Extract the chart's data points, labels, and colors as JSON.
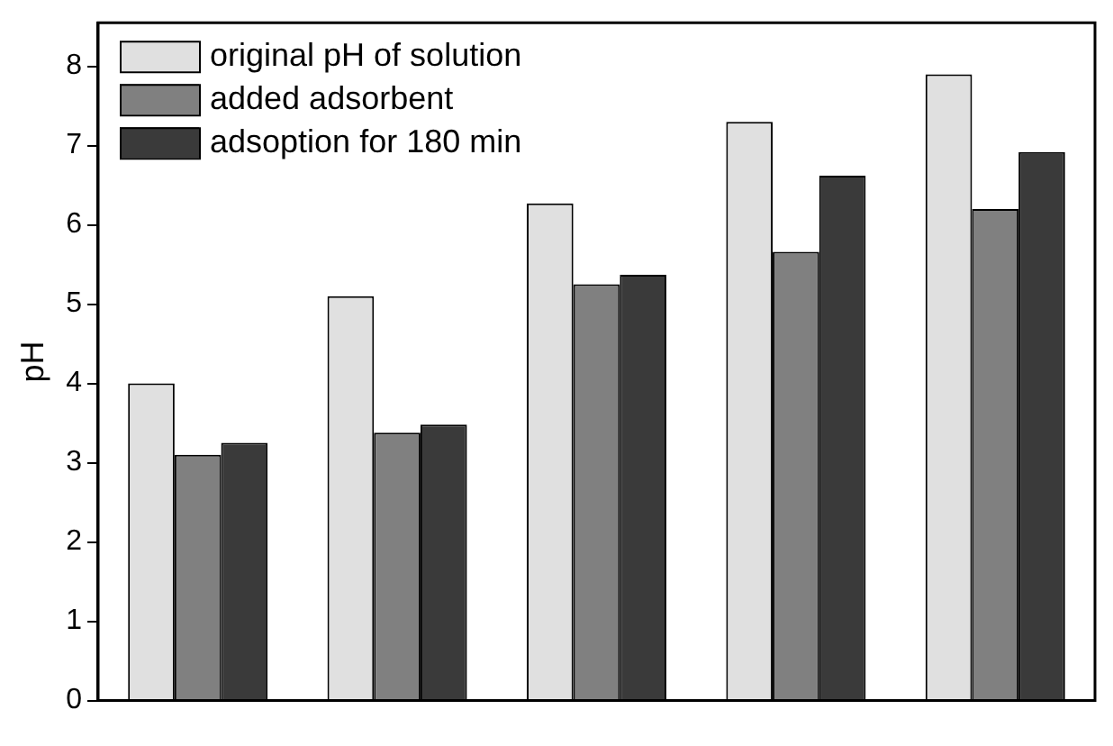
{
  "chart_data": {
    "type": "bar",
    "ylabel": "pH",
    "categories": [
      null,
      null,
      null,
      null,
      null
    ],
    "series": [
      {
        "name": "original pH of solution",
        "color": "#e0e0e0",
        "values": [
          4.0,
          5.1,
          6.27,
          7.3,
          7.9
        ]
      },
      {
        "name": "added adsorbent",
        "color": "#808080",
        "values": [
          3.1,
          3.38,
          5.25,
          5.66,
          6.2
        ]
      },
      {
        "name": "adsoption for 180 min",
        "color": "#3a3a3a",
        "values": [
          3.25,
          3.48,
          5.37,
          6.62,
          6.92
        ]
      }
    ],
    "ylim": [
      0,
      8.55
    ],
    "yticks": [
      0,
      1,
      2,
      3,
      4,
      5,
      6,
      7,
      8
    ],
    "legend": "top left",
    "grid": false
  }
}
